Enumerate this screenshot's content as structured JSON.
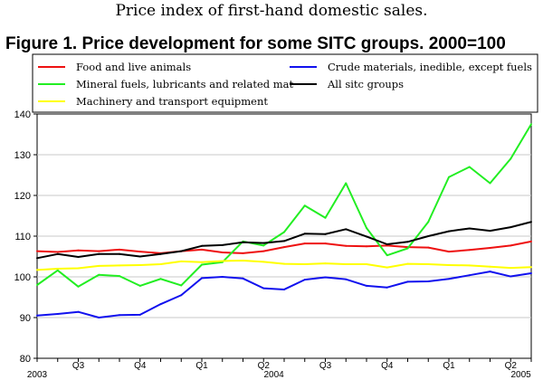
{
  "header": {
    "subtitle": "Price index of first-hand domestic sales.",
    "title": "Figure 1. Price development for some SITC groups. 2000=100"
  },
  "chart_data": {
    "type": "line",
    "title": "Figure 1. Price development for some SITC groups. 2000=100",
    "subtitle": "Price index of first-hand domestic sales.",
    "xlabel": "",
    "ylabel": "",
    "ylim": [
      80,
      140
    ],
    "yticks": [
      80,
      90,
      100,
      110,
      120,
      130,
      140
    ],
    "grid": true,
    "legend_position": "top",
    "periods": 24,
    "quarter_labels": [
      {
        "label": "Q3",
        "center": 2
      },
      {
        "label": "Q4",
        "center": 5
      },
      {
        "label": "Q1",
        "center": 8
      },
      {
        "label": "Q2",
        "center": 11
      },
      {
        "label": "Q3",
        "center": 14
      },
      {
        "label": "Q4",
        "center": 17
      },
      {
        "label": "Q1",
        "center": 20
      },
      {
        "label": "Q2",
        "center": 23
      }
    ],
    "year_labels": [
      {
        "label": "2003",
        "at": 0
      },
      {
        "label": "2004",
        "at": 11.5
      },
      {
        "label": "2005",
        "at": 23.5
      }
    ],
    "series": [
      {
        "name": "Food and live animals",
        "color": "#ee1111",
        "values": [
          106.3,
          106.1,
          106.5,
          106.3,
          106.7,
          106.2,
          105.8,
          106.3,
          106.7,
          106.0,
          105.8,
          106.3,
          107.3,
          108.2,
          108.2,
          107.6,
          107.5,
          107.7,
          107.3,
          107.2,
          106.2,
          106.6,
          107.1,
          107.7,
          108.7
        ]
      },
      {
        "name": "Mineral fuels, lubricants and related mat",
        "color": "#22ee22",
        "values": [
          98.0,
          101.6,
          97.6,
          100.5,
          100.2,
          97.8,
          99.5,
          97.9,
          103.0,
          103.6,
          108.7,
          107.7,
          111.0,
          117.5,
          114.5,
          123.0,
          112.0,
          105.3,
          107.0,
          113.5,
          124.5,
          127.0,
          123.0,
          129.0,
          137.5
        ]
      },
      {
        "name": "Machinery and transport equipment",
        "color": "#ffff00",
        "values": [
          101.7,
          102.0,
          102.1,
          102.7,
          102.8,
          102.9,
          103.1,
          103.8,
          103.6,
          103.9,
          104.0,
          103.7,
          103.2,
          103.1,
          103.3,
          103.1,
          103.1,
          102.3,
          103.2,
          103.1,
          102.9,
          102.8,
          102.5,
          102.2,
          102.4
        ]
      },
      {
        "name": "Crude materials, inedible, except fuels",
        "color": "#1111ee",
        "values": [
          90.5,
          90.9,
          91.4,
          90.0,
          90.6,
          90.7,
          93.3,
          95.5,
          99.7,
          100.0,
          99.6,
          97.2,
          96.9,
          99.3,
          99.9,
          99.4,
          97.8,
          97.4,
          98.8,
          98.9,
          99.5,
          100.4,
          101.3,
          100.1,
          100.9
        ]
      },
      {
        "name": "All sitc groups",
        "color": "#000000",
        "values": [
          104.6,
          105.6,
          104.9,
          105.6,
          105.6,
          105.0,
          105.6,
          106.3,
          107.6,
          107.8,
          108.5,
          108.3,
          108.8,
          110.6,
          110.5,
          111.7,
          109.9,
          108.0,
          108.6,
          110.0,
          111.2,
          111.9,
          111.3,
          112.2,
          113.5
        ]
      }
    ],
    "legend": {
      "columns": [
        [
          "Food and live animals",
          "Mineral fuels, lubricants and related mat",
          "Machinery and transport equipment"
        ],
        [
          "Crude materials, inedible, except fuels",
          "All sitc groups"
        ]
      ]
    }
  }
}
